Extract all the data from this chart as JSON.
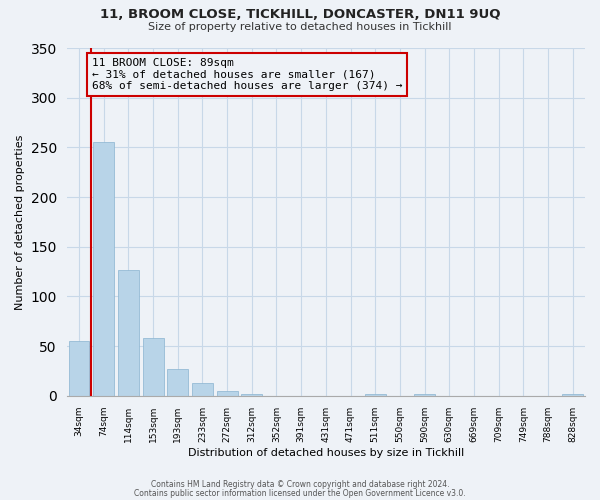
{
  "title1": "11, BROOM CLOSE, TICKHILL, DONCASTER, DN11 9UQ",
  "title2": "Size of property relative to detached houses in Tickhill",
  "xlabel": "Distribution of detached houses by size in Tickhill",
  "ylabel": "Number of detached properties",
  "bar_labels": [
    "34sqm",
    "74sqm",
    "114sqm",
    "153sqm",
    "193sqm",
    "233sqm",
    "272sqm",
    "312sqm",
    "352sqm",
    "391sqm",
    "431sqm",
    "471sqm",
    "511sqm",
    "550sqm",
    "590sqm",
    "630sqm",
    "669sqm",
    "709sqm",
    "749sqm",
    "788sqm",
    "828sqm"
  ],
  "bar_values": [
    55,
    255,
    127,
    58,
    27,
    13,
    5,
    2,
    0,
    0,
    0,
    0,
    2,
    0,
    2,
    0,
    0,
    0,
    0,
    0,
    2
  ],
  "bar_color": "#b8d4e8",
  "bar_edge_color": "#8ab4d0",
  "red_line_x": 0.5,
  "red_line_color": "#cc0000",
  "annotation_title": "11 BROOM CLOSE: 89sqm",
  "annotation_line1": "← 31% of detached houses are smaller (167)",
  "annotation_line2": "68% of semi-detached houses are larger (374) →",
  "annotation_box_edge": "#cc0000",
  "footer1": "Contains HM Land Registry data © Crown copyright and database right 2024.",
  "footer2": "Contains public sector information licensed under the Open Government Licence v3.0.",
  "background_color": "#eef2f7",
  "grid_color": "#c8d8e8",
  "ylim": [
    0,
    350
  ],
  "yticks": [
    0,
    50,
    100,
    150,
    200,
    250,
    300,
    350
  ]
}
